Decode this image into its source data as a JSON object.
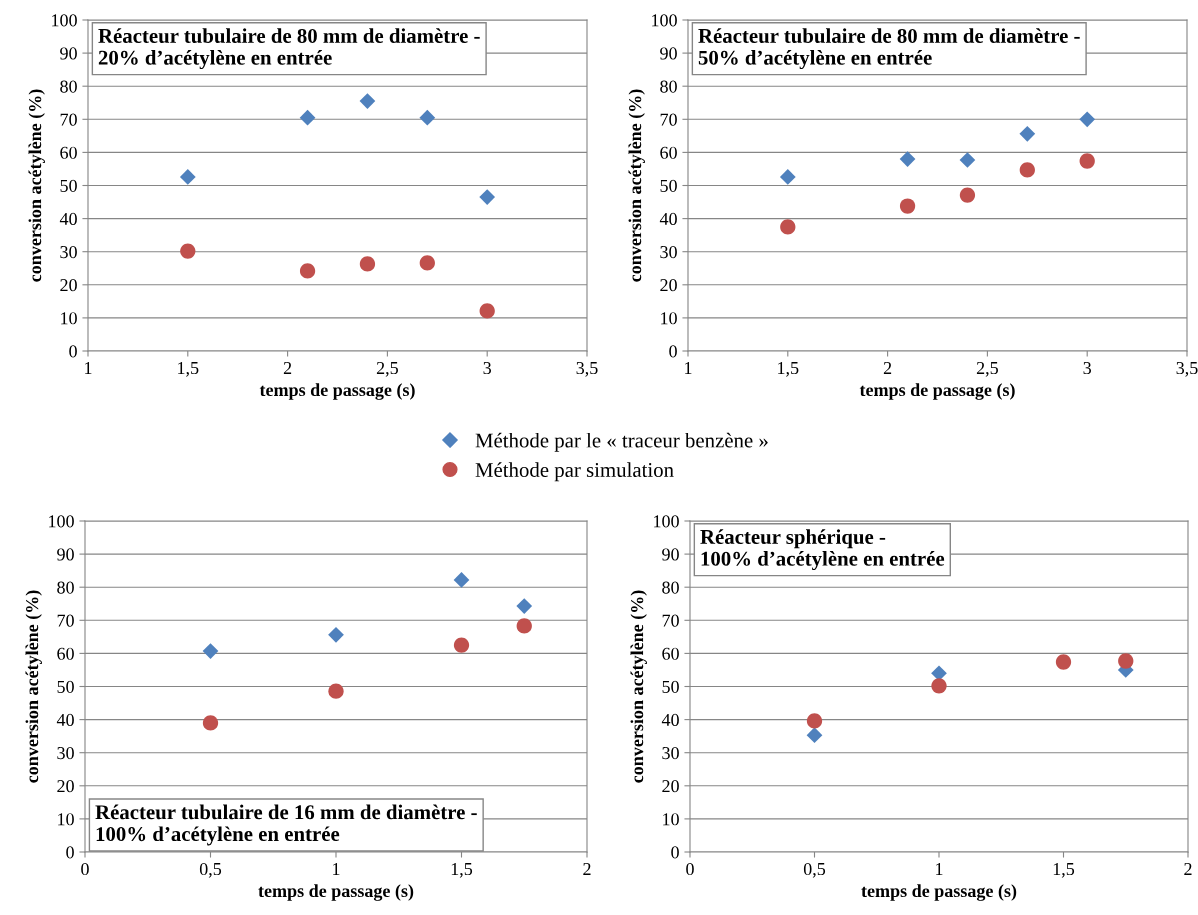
{
  "chart_data": [
    {
      "type": "scatter",
      "title": "Réacteur tubulaire de 80 mm de diamètre -\n20% d’acétylène en entrée",
      "xlabel": "temps de passage (s)",
      "ylabel": "conversion acétylène (%)",
      "x": [
        1.5,
        2.1,
        2.4,
        2.7,
        3.0
      ],
      "series": [
        {
          "name": "Méthode par le « traceur benzène »",
          "color": "#4f81bd",
          "marker": "diamond",
          "values": [
            52.6,
            70.5,
            75.5,
            70.5,
            46.5
          ]
        },
        {
          "name": "Méthode par simulation",
          "color": "#c0504d",
          "marker": "circle",
          "values": [
            30.2,
            24.2,
            26.3,
            26.6,
            12.1
          ]
        }
      ],
      "xlim": [
        1,
        3.5
      ],
      "xticks": [
        1,
        {
          "value": 1.5,
          "label": "1,5"
        },
        2,
        {
          "value": 2.5,
          "label": "2,5"
        },
        3,
        {
          "value": 3.5,
          "label": "3,5"
        }
      ],
      "ylim": [
        0,
        100
      ],
      "yticks": [
        0,
        10,
        20,
        30,
        40,
        50,
        60,
        70,
        80,
        90,
        100
      ],
      "grid": "y",
      "legend": "bottom"
    },
    {
      "type": "scatter",
      "title": "Réacteur tubulaire de 80 mm de diamètre -\n50% d’acétylène en entrée",
      "xlabel": "temps de passage (s)",
      "ylabel": "conversion acétylène (%)",
      "x": [
        1.5,
        2.1,
        2.4,
        2.7,
        3.0
      ],
      "series": [
        {
          "color": "#4f81bd",
          "marker": "diamond",
          "values": [
            52.6,
            58.0,
            57.7,
            65.6,
            70.0
          ]
        },
        {
          "color": "#c0504d",
          "marker": "circle",
          "values": [
            37.5,
            43.8,
            47.1,
            54.7,
            57.4
          ]
        }
      ],
      "xlim": [
        1,
        3.5
      ],
      "xticks": [
        1,
        {
          "value": 1.5,
          "label": "1,5"
        },
        2,
        {
          "value": 2.5,
          "label": "2,5"
        },
        3,
        {
          "value": 3.5,
          "label": "3,5"
        }
      ],
      "ylim": [
        0,
        100
      ],
      "yticks": [
        0,
        10,
        20,
        30,
        40,
        50,
        60,
        70,
        80,
        90,
        100
      ],
      "grid": "y"
    },
    {
      "type": "scatter",
      "title": "Réacteur tubulaire de 16 mm de diamètre -\n100% d’acétylène en entrée",
      "xlabel": "temps de passage (s)",
      "ylabel": "conversion acétylène (%)",
      "x": [
        0.5,
        1.0,
        1.5,
        1.75
      ],
      "series": [
        {
          "color": "#4f81bd",
          "marker": "diamond",
          "values": [
            60.7,
            65.6,
            82.2,
            74.3
          ]
        },
        {
          "color": "#c0504d",
          "marker": "circle",
          "values": [
            39.0,
            48.6,
            62.5,
            68.3
          ]
        }
      ],
      "xlim": [
        0,
        2
      ],
      "xticks": [
        0,
        {
          "value": 0.5,
          "label": "0,5"
        },
        1,
        {
          "value": 1.5,
          "label": "1,5"
        },
        2
      ],
      "ylim": [
        0,
        100
      ],
      "yticks": [
        0,
        10,
        20,
        30,
        40,
        50,
        60,
        70,
        80,
        90,
        100
      ],
      "grid": "y"
    },
    {
      "type": "scatter",
      "title": "Réacteur sphérique -\n100% d’acétylène en entrée",
      "xlabel": "temps de passage (s)",
      "ylabel": "conversion acétylène (%)",
      "x": [
        0.5,
        1.0,
        1.5,
        1.75
      ],
      "series": [
        {
          "color": "#4f81bd",
          "marker": "diamond",
          "values": [
            35.3,
            54.0,
            null,
            55.0
          ]
        },
        {
          "color": "#c0504d",
          "marker": "circle",
          "values": [
            39.6,
            50.2,
            57.4,
            57.7
          ]
        }
      ],
      "xlim": [
        0,
        2
      ],
      "xticks": [
        0,
        {
          "value": 0.5,
          "label": "0,5"
        },
        1,
        {
          "value": 1.5,
          "label": "1,5"
        },
        2
      ],
      "ylim": [
        0,
        100
      ],
      "yticks": [
        0,
        10,
        20,
        30,
        40,
        50,
        60,
        70,
        80,
        90,
        100
      ],
      "grid": "y"
    }
  ]
}
